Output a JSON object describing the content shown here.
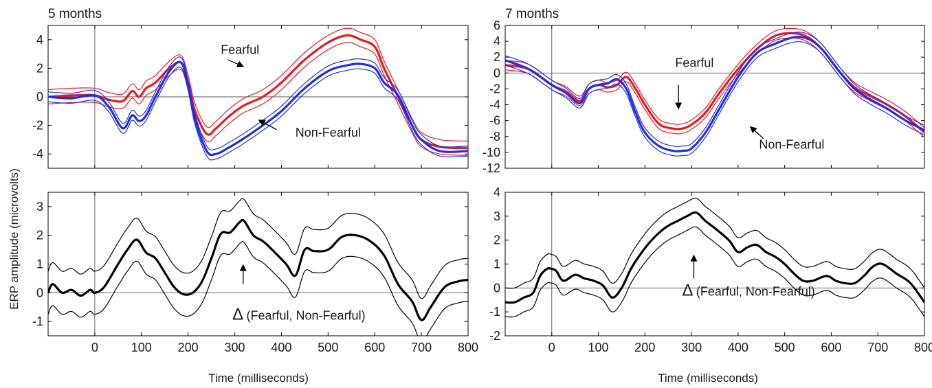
{
  "figure": {
    "ylabel": "ERP amplitude (microvolts)",
    "panel_titles": [
      "5 months",
      "7 months"
    ],
    "xlabel": "Time (milliseconds)"
  },
  "colors": {
    "fearful": "#e8191f",
    "nonfearful": "#1f2de6",
    "difference": "#000000",
    "axis": "#000000",
    "zero": "#555555"
  },
  "chart_data": [
    {
      "type": "line",
      "panel": "5 months top",
      "xlim": [
        -100,
        800
      ],
      "ylim": [
        -5,
        5
      ],
      "xticks": [],
      "yticks": [
        -4,
        -2,
        0,
        2,
        4
      ],
      "series": [
        {
          "name": "Fearful",
          "color": "#e8191f",
          "band": 0.5,
          "x": [
            -100,
            -50,
            0,
            30,
            60,
            80,
            95,
            110,
            130,
            160,
            185,
            200,
            215,
            240,
            260,
            290,
            320,
            360,
            400,
            450,
            500,
            540,
            570,
            600,
            620,
            650,
            680,
            700,
            740,
            800
          ],
          "values": [
            0,
            0.1,
            0.1,
            -0.2,
            -0.3,
            0.4,
            0,
            0.6,
            1,
            2,
            2.4,
            1,
            -1,
            -2.6,
            -2.2,
            -1.3,
            -0.6,
            0,
            1,
            2.6,
            3.8,
            4.3,
            4,
            3.5,
            2,
            0,
            -2,
            -3,
            -3.5,
            -3.6
          ]
        },
        {
          "name": "Non-Fearful",
          "color": "#1f2de6",
          "band": 0.35,
          "x": [
            -100,
            -50,
            0,
            30,
            60,
            80,
            95,
            110,
            130,
            160,
            185,
            200,
            215,
            240,
            260,
            290,
            320,
            360,
            400,
            450,
            500,
            540,
            570,
            600,
            620,
            650,
            680,
            700,
            740,
            800
          ],
          "values": [
            0,
            -0.1,
            0.1,
            -0.7,
            -2.2,
            -1.3,
            -1.7,
            -1.3,
            0,
            1.8,
            2.4,
            0.8,
            -1.6,
            -3.8,
            -4,
            -3.5,
            -2.9,
            -2,
            -1,
            0.6,
            1.8,
            2.2,
            2.3,
            2,
            1,
            0.1,
            -2,
            -3,
            -3.8,
            -3.8
          ]
        }
      ],
      "annotations": [
        {
          "text": "Fearful",
          "x": 270,
          "y": 3.3
        },
        {
          "text": "Non-Fearful",
          "x": 430,
          "y": -2.5
        }
      ]
    },
    {
      "type": "line",
      "panel": "5 months bottom",
      "xlim": [
        -100,
        800
      ],
      "ylim": [
        -1.5,
        3.5
      ],
      "xticks": [
        0,
        100,
        200,
        300,
        400,
        500,
        600,
        700,
        800
      ],
      "yticks": [
        -1,
        0,
        1,
        2,
        3
      ],
      "series": [
        {
          "name": "Δ(Fearful, Non-Fearful)",
          "color": "#000000",
          "band": 0.75,
          "x": [
            -100,
            -90,
            -70,
            -50,
            -30,
            -10,
            0,
            20,
            50,
            70,
            90,
            110,
            130,
            150,
            170,
            190,
            210,
            230,
            250,
            270,
            290,
            310,
            320,
            340,
            360,
            380,
            410,
            430,
            450,
            470,
            500,
            530,
            560,
            590,
            620,
            650,
            680,
            700,
            720,
            750,
            780,
            800
          ],
          "values": [
            0,
            0.3,
            0,
            0.1,
            -0.1,
            0.1,
            0,
            0.2,
            1,
            1.5,
            1.85,
            1.4,
            1.2,
            0.7,
            0.2,
            -0.05,
            0,
            0.4,
            1.2,
            2.05,
            2.1,
            2.45,
            2.5,
            2,
            1.8,
            1.5,
            1.0,
            0.6,
            1.5,
            1.45,
            1.5,
            1.95,
            2.0,
            1.8,
            1.3,
            0.3,
            -0.3,
            -0.95,
            -0.5,
            0.2,
            0.4,
            0.45
          ]
        }
      ],
      "annotations": [
        {
          "text": "Δ",
          "x": 295,
          "y": -0.8
        },
        {
          "text": "(Fearful, Non-Fearful)",
          "x": 325,
          "y": -0.8
        }
      ]
    },
    {
      "type": "line",
      "panel": "7 months top",
      "xlim": [
        -100,
        800
      ],
      "ylim": [
        -12,
        6
      ],
      "xticks": [],
      "yticks": [
        -12,
        -10,
        -8,
        -6,
        -4,
        -2,
        0,
        2,
        4,
        6
      ],
      "series": [
        {
          "name": "Fearful",
          "color": "#e8191f",
          "band": 0.6,
          "x": [
            -100,
            -50,
            0,
            30,
            60,
            80,
            100,
            120,
            140,
            160,
            180,
            200,
            230,
            260,
            280,
            300,
            330,
            360,
            400,
            440,
            480,
            520,
            550,
            580,
            620,
            650,
            680,
            720,
            760,
            800
          ],
          "values": [
            1,
            0.5,
            -1.5,
            -2.3,
            -3.5,
            -2,
            -1.5,
            -1.8,
            -1.5,
            -0.5,
            -2,
            -4,
            -6.4,
            -7,
            -7,
            -6.5,
            -5,
            -2.5,
            0.5,
            3,
            4.7,
            5,
            4.5,
            3,
            0,
            -1.8,
            -2.8,
            -4,
            -5.5,
            -7.5
          ]
        },
        {
          "name": "Non-Fearful",
          "color": "#1f2de6",
          "band": 0.6,
          "x": [
            -100,
            -50,
            0,
            30,
            60,
            80,
            100,
            120,
            140,
            160,
            180,
            200,
            230,
            260,
            280,
            300,
            330,
            360,
            400,
            440,
            480,
            520,
            550,
            580,
            620,
            650,
            680,
            720,
            760,
            800
          ],
          "values": [
            1.6,
            0.5,
            -1.5,
            -2.5,
            -3.8,
            -2,
            -1.5,
            -1.3,
            -0.8,
            -2,
            -5,
            -7.5,
            -9.2,
            -9.8,
            -9.8,
            -9.5,
            -7.5,
            -4.5,
            -0.5,
            2.5,
            3.7,
            4.5,
            4.3,
            3,
            0,
            -2,
            -3.2,
            -4.5,
            -6,
            -7.2
          ]
        }
      ],
      "annotations": [
        {
          "text": "Fearful",
          "x": 265,
          "y": 1.3
        },
        {
          "text": "Non-Fearful",
          "x": 445,
          "y": -9
        }
      ]
    },
    {
      "type": "line",
      "panel": "7 months bottom",
      "xlim": [
        -100,
        800
      ],
      "ylim": [
        -2,
        4
      ],
      "xticks": [
        0,
        100,
        200,
        300,
        400,
        500,
        600,
        700,
        800
      ],
      "yticks": [
        -2,
        -1,
        0,
        1,
        2,
        3,
        4
      ],
      "series": [
        {
          "name": "Δ(Fearful, Non-Fearful)",
          "color": "#000000",
          "band": 0.6,
          "x": [
            -100,
            -80,
            -60,
            -40,
            -25,
            -10,
            0,
            10,
            25,
            50,
            70,
            90,
            110,
            130,
            150,
            170,
            190,
            210,
            230,
            250,
            270,
            290,
            310,
            330,
            350,
            380,
            400,
            420,
            440,
            460,
            480,
            500,
            520,
            540,
            560,
            590,
            610,
            630,
            650,
            670,
            690,
            710,
            740,
            770,
            800
          ],
          "values": [
            -0.6,
            -0.6,
            -0.4,
            -0.2,
            0.5,
            0.8,
            0.8,
            0.7,
            0.3,
            0.55,
            0.4,
            0.3,
            0.1,
            -0.4,
            0,
            0.8,
            1.4,
            1.9,
            2.3,
            2.6,
            2.8,
            3.0,
            3.15,
            2.8,
            2.5,
            2.0,
            1.5,
            1.7,
            1.8,
            1.5,
            1.3,
            1.0,
            0.6,
            0.3,
            0.3,
            0.5,
            0.3,
            0.2,
            0.2,
            0.5,
            0.9,
            1.0,
            0.6,
            0.2,
            -0.6
          ]
        }
      ],
      "annotations": [
        {
          "text": "Δ",
          "x": 280,
          "y": -0.15
        },
        {
          "text": "(Fearful, Non-Fearful)",
          "x": 310,
          "y": -0.15
        }
      ]
    }
  ]
}
